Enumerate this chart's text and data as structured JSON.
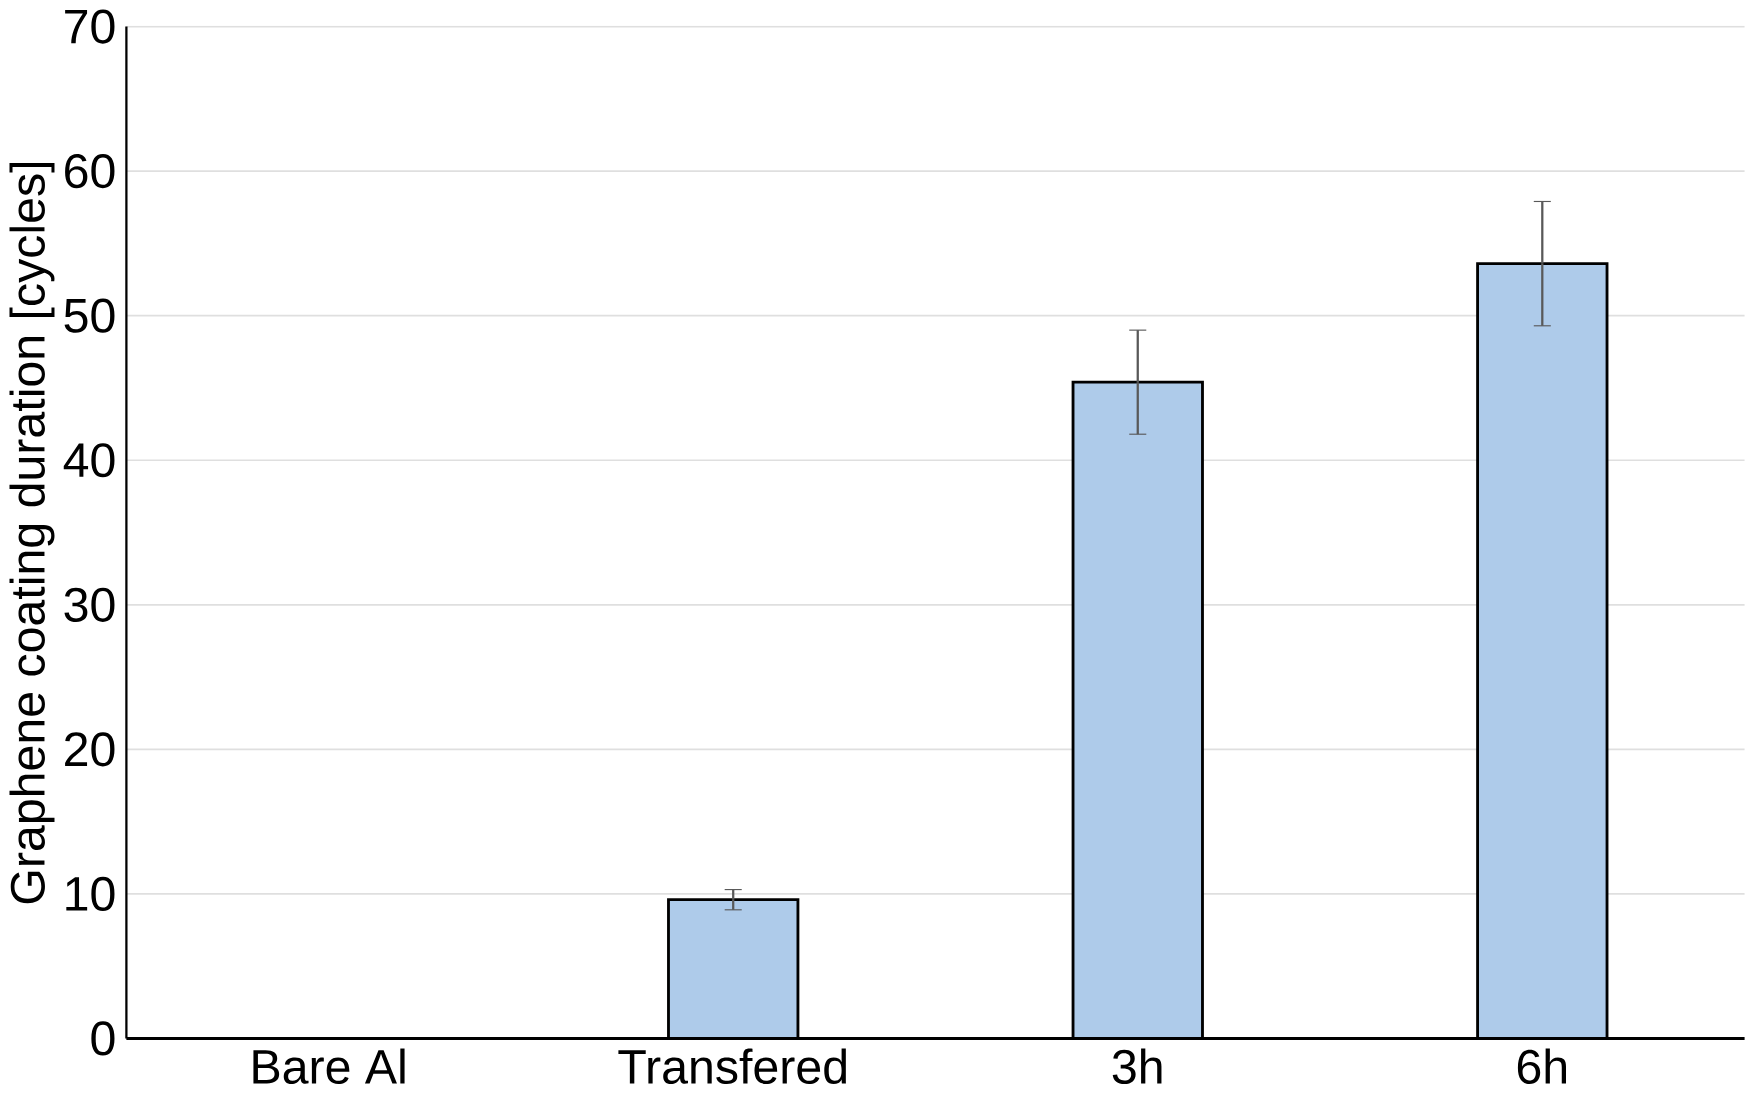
{
  "chart_data": {
    "type": "bar",
    "ylabel": "Graphene coating duration [cycles]",
    "categories": [
      "Bare Al",
      "Transfered",
      "3h",
      "6h"
    ],
    "values": [
      null,
      9.6,
      45.4,
      53.6
    ],
    "errors": [
      null,
      0.7,
      3.6,
      4.3
    ],
    "color": "#aecbea",
    "ylim": [
      0,
      70
    ],
    "yticks": [
      0,
      10,
      20,
      30,
      40,
      50,
      60,
      70
    ],
    "grid": "y"
  }
}
